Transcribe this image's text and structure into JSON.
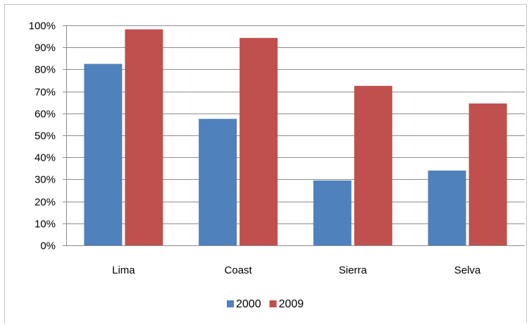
{
  "chart_data": {
    "type": "bar",
    "categories": [
      "Lima",
      "Coast",
      "Sierra",
      "Selva"
    ],
    "series": [
      {
        "name": "2000",
        "color": "#4f81bd",
        "values": [
          82.5,
          57.5,
          29.5,
          34
        ]
      },
      {
        "name": "2009",
        "color": "#c0504d",
        "values": [
          98.2,
          94.3,
          72.5,
          64.5
        ]
      }
    ],
    "ylim": [
      0,
      100
    ],
    "yticks": [
      "0%",
      "10%",
      "20%",
      "30%",
      "40%",
      "50%",
      "60%",
      "70%",
      "80%",
      "90%",
      "100%"
    ],
    "grid": true,
    "legend": "bottom"
  }
}
